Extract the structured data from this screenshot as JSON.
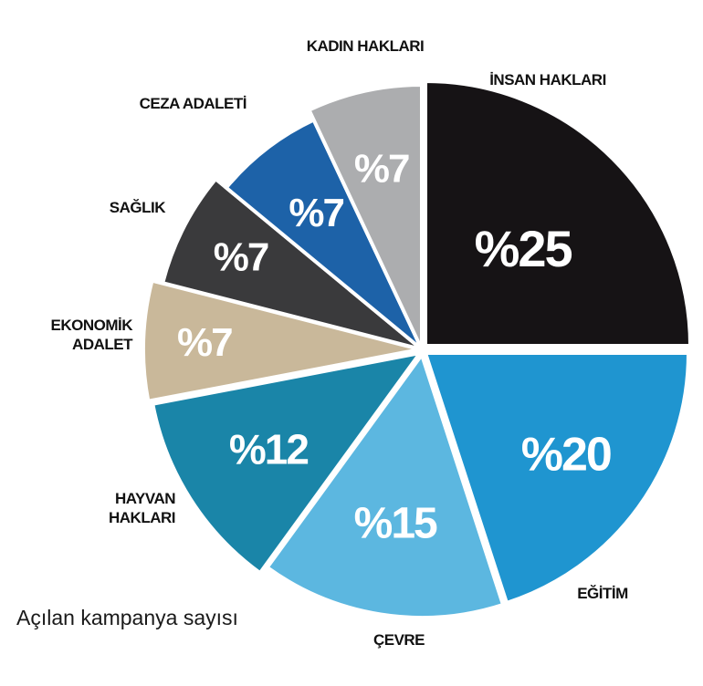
{
  "caption": "Açılan kampanya sayısı",
  "chart_data": {
    "type": "pie",
    "slices": [
      {
        "name": "İNSAN HAKLARI",
        "label": "%25",
        "value": 25,
        "color": "#161315"
      },
      {
        "name": "EĞİTİM",
        "label": "%20",
        "value": 20,
        "color": "#1f95d0"
      },
      {
        "name": "ÇEVRE",
        "label": "%15",
        "value": 15,
        "color": "#5cb7e0"
      },
      {
        "name": "HAYVAN HAKLARI",
        "label": "%12",
        "value": 12,
        "color": "#1a85a8"
      },
      {
        "name": "EKONOMİK ADALET",
        "label": "%7",
        "value": 7,
        "color": "#c9b89a"
      },
      {
        "name": "SAĞLIK",
        "label": "%7",
        "value": 7,
        "color": "#3a3a3c"
      },
      {
        "name": "CEZA ADALETİ",
        "label": "%7",
        "value": 7,
        "color": "#1d62a8"
      },
      {
        "name": "KADIN HAKLARI",
        "label": "%7",
        "value": 7,
        "color": "#acadaf"
      }
    ]
  }
}
